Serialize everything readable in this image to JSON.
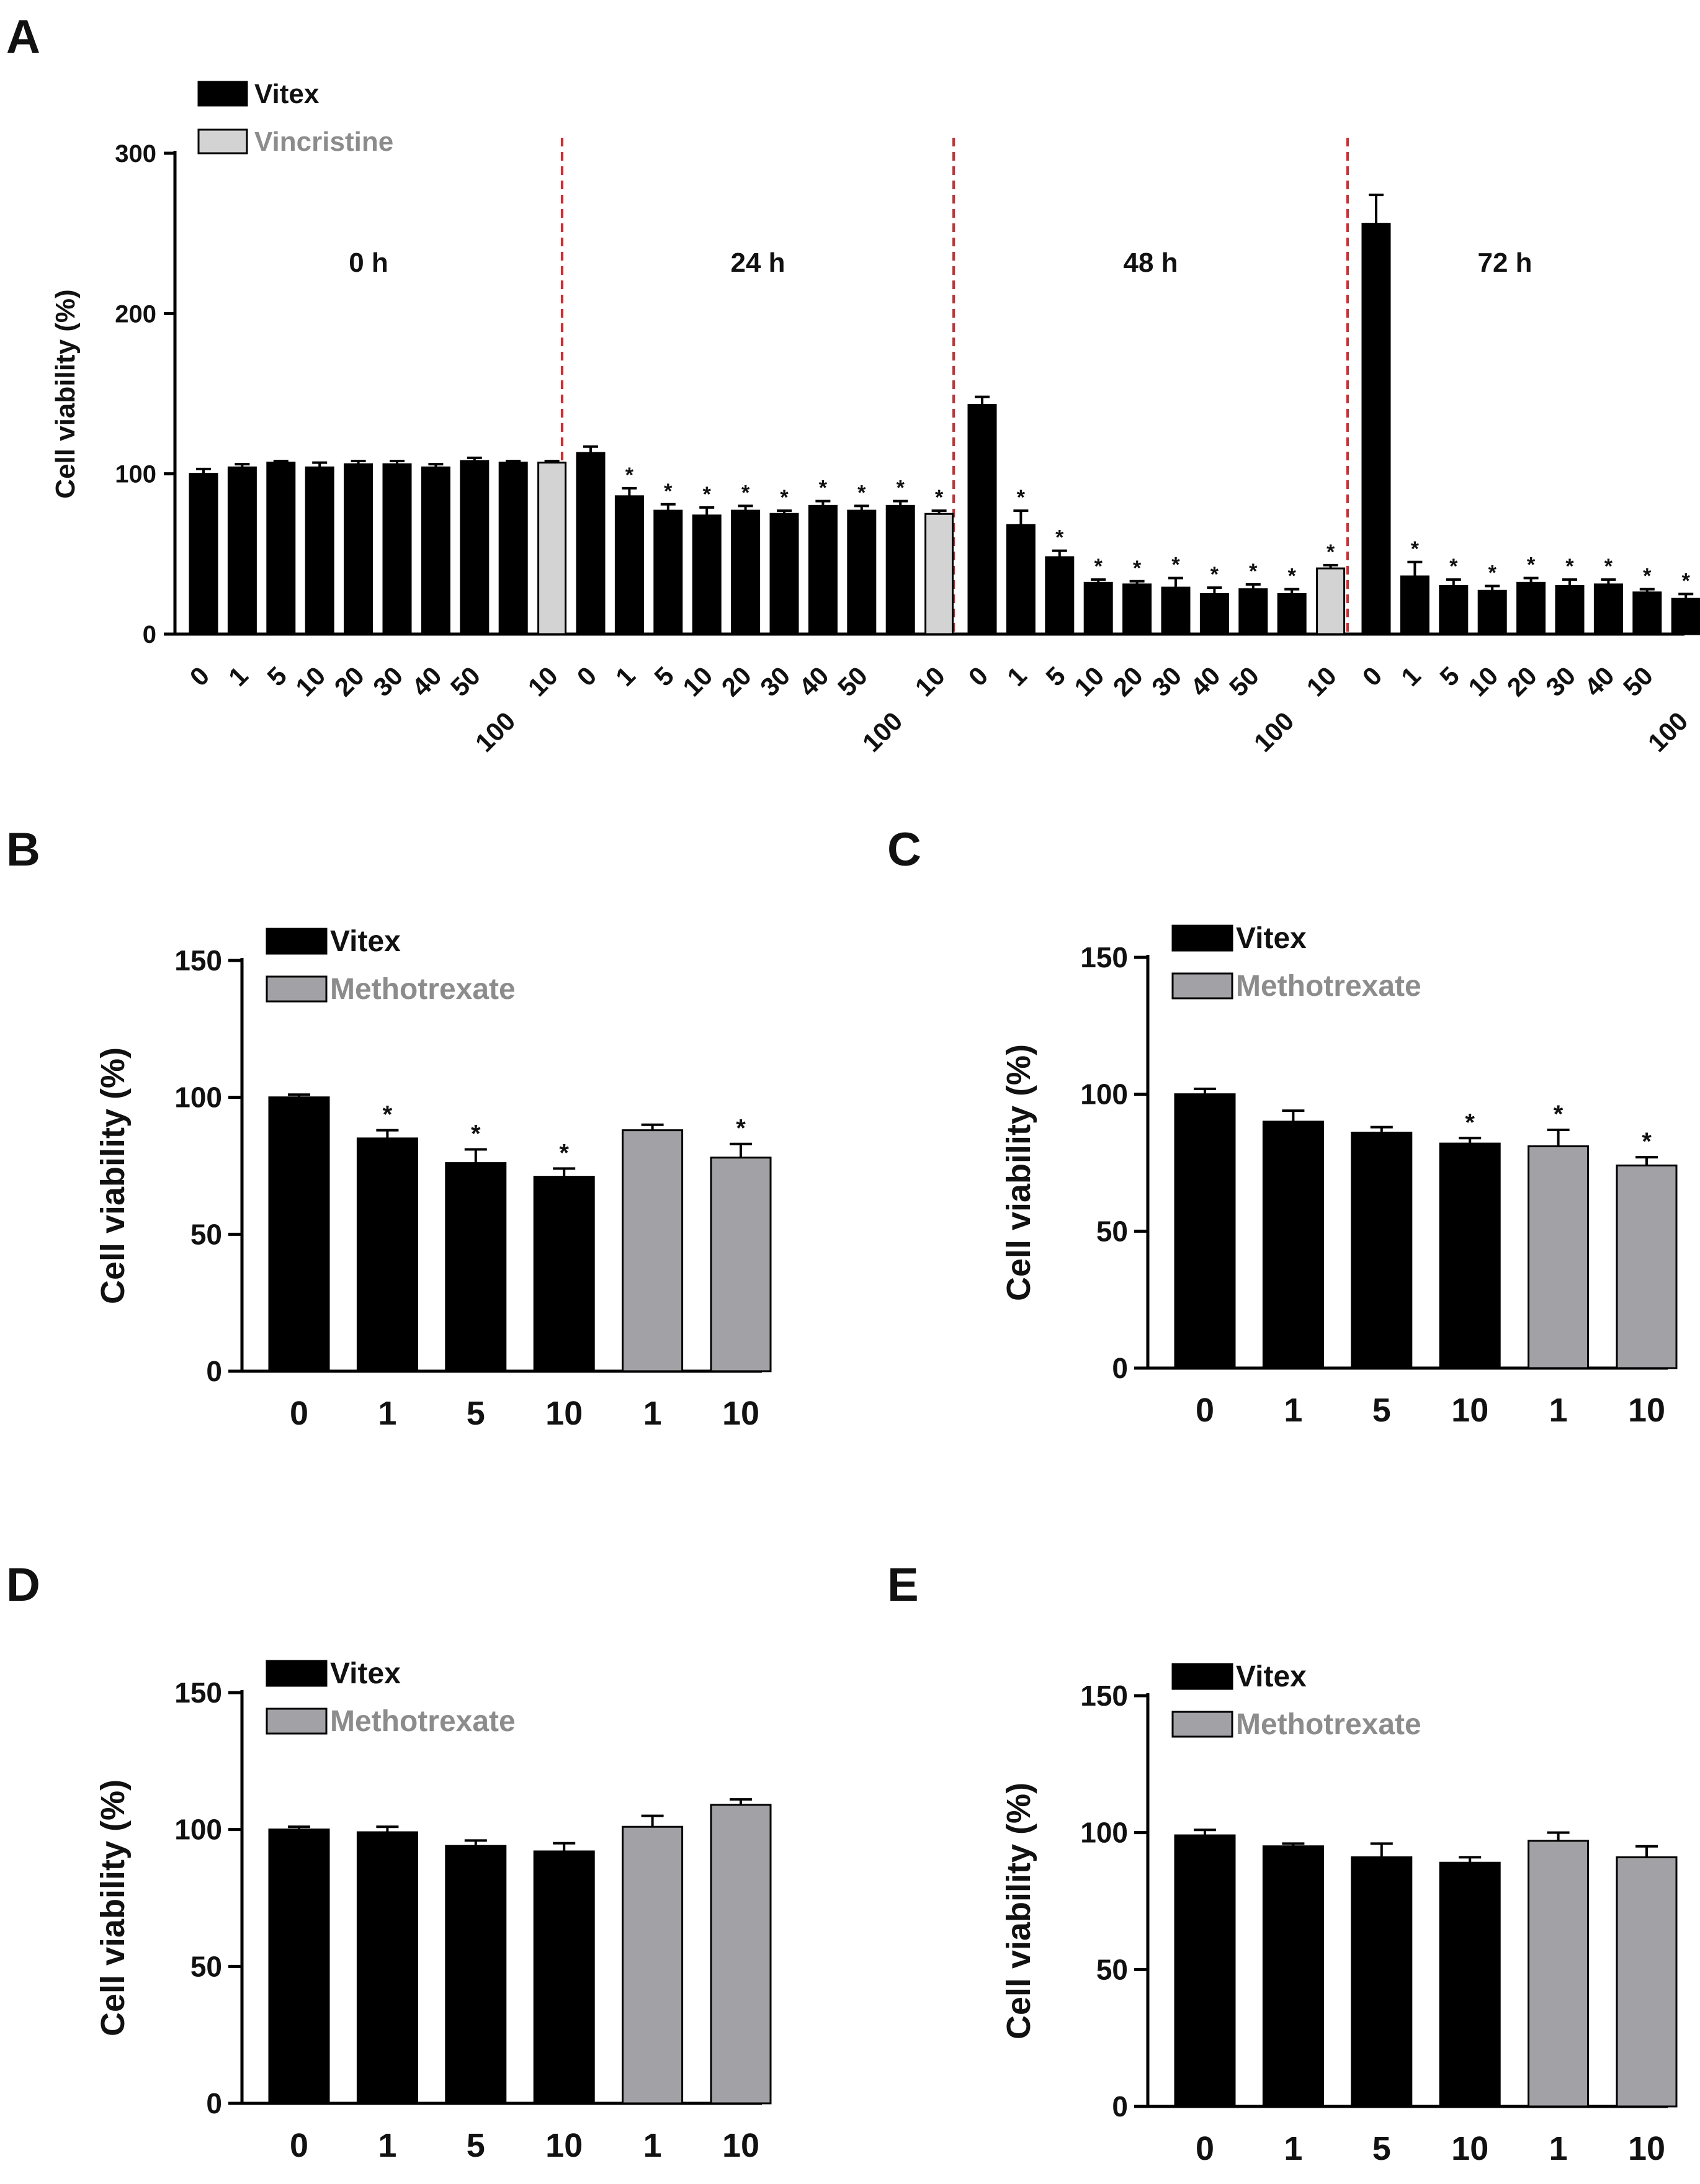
{
  "colors": {
    "vitex": "#000000",
    "vincristine": "#d3d3d3",
    "methotrexate": "#a2a2a6",
    "legend_text_gray": "#8c8c8c",
    "divider": "#e0262a"
  },
  "chart_data": [
    {
      "panel": "A",
      "type": "bar",
      "ylabel": "Cell viability (%)",
      "ylim": [
        0,
        300
      ],
      "yticks": [
        0,
        100,
        200,
        300
      ],
      "legend": [
        {
          "name": "Vitex",
          "color": "#000000"
        },
        {
          "name": "Vincristine",
          "color": "#d3d3d3"
        }
      ],
      "groups": [
        {
          "label": "0 h",
          "categories": [
            "0",
            "1",
            "5",
            "10",
            "20",
            "30",
            "40",
            "50",
            "100",
            "10"
          ],
          "series": [
            "Vitex",
            "Vitex",
            "Vitex",
            "Vitex",
            "Vitex",
            "Vitex",
            "Vitex",
            "Vitex",
            "Vitex",
            "Vincristine"
          ],
          "values": [
            100,
            104,
            107,
            104,
            106,
            106,
            104,
            108,
            107,
            107
          ],
          "errors": [
            3,
            2,
            1,
            3,
            2,
            2,
            2,
            2,
            1,
            1
          ],
          "sig": [
            false,
            false,
            false,
            false,
            false,
            false,
            false,
            false,
            false,
            false
          ]
        },
        {
          "label": "24 h",
          "categories": [
            "0",
            "1",
            "5",
            "10",
            "20",
            "30",
            "40",
            "50",
            "100",
            "10"
          ],
          "series": [
            "Vitex",
            "Vitex",
            "Vitex",
            "Vitex",
            "Vitex",
            "Vitex",
            "Vitex",
            "Vitex",
            "Vitex",
            "Vincristine"
          ],
          "values": [
            113,
            86,
            77,
            74,
            77,
            75,
            80,
            77,
            80,
            75
          ],
          "errors": [
            4,
            5,
            4,
            5,
            3,
            2,
            3,
            3,
            3,
            2
          ],
          "sig": [
            false,
            true,
            true,
            true,
            true,
            true,
            true,
            true,
            true,
            true
          ]
        },
        {
          "label": "48 h",
          "categories": [
            "0",
            "1",
            "5",
            "10",
            "20",
            "30",
            "40",
            "50",
            "100",
            "10"
          ],
          "series": [
            "Vitex",
            "Vitex",
            "Vitex",
            "Vitex",
            "Vitex",
            "Vitex",
            "Vitex",
            "Vitex",
            "Vitex",
            "Vincristine"
          ],
          "values": [
            143,
            68,
            48,
            32,
            31,
            29,
            25,
            28,
            25,
            41
          ],
          "errors": [
            5,
            9,
            4,
            2,
            2,
            6,
            4,
            3,
            3,
            2
          ],
          "sig": [
            false,
            true,
            true,
            true,
            true,
            true,
            true,
            true,
            true,
            true
          ]
        },
        {
          "label": "72 h",
          "categories": [
            "0",
            "1",
            "5",
            "10",
            "20",
            "30",
            "40",
            "50",
            "100"
          ],
          "series": [
            "Vitex",
            "Vitex",
            "Vitex",
            "Vitex",
            "Vitex",
            "Vitex",
            "Vitex",
            "Vitex",
            "Vitex"
          ],
          "values": [
            256,
            36,
            30,
            27,
            32,
            30,
            31,
            26,
            22
          ],
          "errors": [
            18,
            9,
            4,
            3,
            3,
            4,
            3,
            2,
            3
          ],
          "sig": [
            false,
            true,
            true,
            true,
            true,
            true,
            true,
            true,
            true
          ]
        }
      ]
    },
    {
      "panel": "B",
      "type": "bar",
      "ylabel": "Cell viability (%)",
      "ylim": [
        0,
        150
      ],
      "yticks": [
        0,
        50,
        100,
        150
      ],
      "legend": [
        {
          "name": "Vitex",
          "color": "#000000"
        },
        {
          "name": "Methotrexate",
          "color": "#a2a2a6"
        }
      ],
      "categories": [
        "0",
        "1",
        "5",
        "10",
        "1",
        "10"
      ],
      "series": [
        "Vitex",
        "Vitex",
        "Vitex",
        "Vitex",
        "Methotrexate",
        "Methotrexate"
      ],
      "values": [
        100,
        85,
        76,
        71,
        88,
        78
      ],
      "errors": [
        1,
        3,
        5,
        3,
        2,
        5
      ],
      "sig": [
        false,
        true,
        true,
        true,
        false,
        true
      ]
    },
    {
      "panel": "C",
      "type": "bar",
      "ylabel": "Cell viability (%)",
      "ylim": [
        0,
        150
      ],
      "yticks": [
        0,
        50,
        100,
        150
      ],
      "legend": [
        {
          "name": "Vitex",
          "color": "#000000"
        },
        {
          "name": "Methotrexate",
          "color": "#a2a2a6"
        }
      ],
      "categories": [
        "0",
        "1",
        "5",
        "10",
        "1",
        "10"
      ],
      "series": [
        "Vitex",
        "Vitex",
        "Vitex",
        "Vitex",
        "Methotrexate",
        "Methotrexate"
      ],
      "values": [
        100,
        90,
        86,
        82,
        81,
        74
      ],
      "errors": [
        2,
        4,
        2,
        2,
        6,
        3
      ],
      "sig": [
        false,
        false,
        false,
        true,
        true,
        true
      ]
    },
    {
      "panel": "D",
      "type": "bar",
      "ylabel": "Cell viability (%)",
      "ylim": [
        0,
        150
      ],
      "yticks": [
        0,
        50,
        100,
        150
      ],
      "legend": [
        {
          "name": "Vitex",
          "color": "#000000"
        },
        {
          "name": "Methotrexate",
          "color": "#a2a2a6"
        }
      ],
      "categories": [
        "0",
        "1",
        "5",
        "10",
        "1",
        "10"
      ],
      "series": [
        "Vitex",
        "Vitex",
        "Vitex",
        "Vitex",
        "Methotrexate",
        "Methotrexate"
      ],
      "values": [
        100,
        99,
        94,
        92,
        101,
        109
      ],
      "errors": [
        1,
        2,
        2,
        3,
        4,
        2
      ],
      "sig": [
        false,
        false,
        false,
        false,
        false,
        false
      ]
    },
    {
      "panel": "E",
      "type": "bar",
      "ylabel": "Cell viability (%)",
      "ylim": [
        0,
        150
      ],
      "yticks": [
        0,
        50,
        100,
        150
      ],
      "legend": [
        {
          "name": "Vitex",
          "color": "#000000"
        },
        {
          "name": "Methotrexate",
          "color": "#a2a2a6"
        }
      ],
      "categories": [
        "0",
        "1",
        "5",
        "10",
        "1",
        "10"
      ],
      "series": [
        "Vitex",
        "Vitex",
        "Vitex",
        "Vitex",
        "Methotrexate",
        "Methotrexate"
      ],
      "values": [
        99,
        95,
        91,
        89,
        97,
        91
      ],
      "errors": [
        2,
        1,
        5,
        2,
        3,
        4
      ],
      "sig": [
        false,
        false,
        false,
        false,
        false,
        false
      ]
    }
  ],
  "significance_marker": "*"
}
